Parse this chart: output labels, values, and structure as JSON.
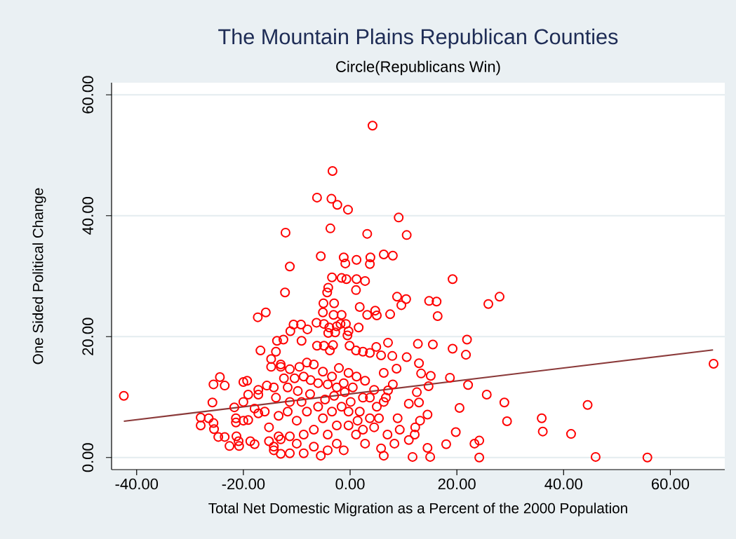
{
  "chart_data": {
    "type": "scatter",
    "title": "The Mountain Plains Republican Counties",
    "subtitle": "Circle(Republicans Win)",
    "xlabel": "Total Net Domestic Migration as a Percent of the 2000 Population",
    "ylabel": "One Sided Political Change",
    "xlim": [
      -44.7,
      70.2
    ],
    "ylim": [
      -2,
      62
    ],
    "xticks": [
      {
        "value": -40,
        "label": "-40.00"
      },
      {
        "value": -20,
        "label": "-20.00"
      },
      {
        "value": 0,
        "label": "0.00"
      },
      {
        "value": 20,
        "label": "20.00"
      },
      {
        "value": 40,
        "label": "40.00"
      },
      {
        "value": 60,
        "label": "60.00"
      }
    ],
    "yticks": [
      {
        "value": 0,
        "label": "0.00"
      },
      {
        "value": 20,
        "label": "20.00"
      },
      {
        "value": 40,
        "label": "40.00"
      },
      {
        "value": 60,
        "label": "60.00"
      }
    ],
    "grid": "y",
    "series": [
      {
        "type": "scatter",
        "marker": "circle",
        "color": "#ff0000",
        "x": [
          -42.4,
          4.2,
          -3.3,
          -6.2,
          -3.5,
          -2.4,
          -0.4,
          -3.7,
          -12.1,
          3.2,
          9.1,
          10.6,
          -5.5,
          6.3,
          8.0,
          -1.2,
          3.8,
          -0.9,
          -11.3,
          1.2,
          3.7,
          -3.4,
          -1.6,
          -0.7,
          1.2,
          2.8,
          1.1,
          -4.1,
          -4.3,
          -12.2,
          19.2,
          28.0,
          25.9,
          16.2,
          14.8,
          8.8,
          10.5,
          9.6,
          16.4,
          -5.0,
          -3.0,
          1.8,
          4.7,
          5.0,
          7.5,
          3.2,
          -15.8,
          -17.3,
          -5.1,
          -3.1,
          -1.6,
          -6.3,
          -10.6,
          -9.2,
          -8.0,
          -11.2,
          -4.9,
          -3.9,
          -2.5,
          -1.8,
          -0.8,
          -0.3,
          1.6,
          -4.1,
          -2.8,
          -0.5,
          -9.1,
          -13.7,
          -12.5,
          7.1,
          4.9,
          -6.2,
          -4.9,
          -3.8,
          -3.2,
          -0.1,
          1.1,
          2.4,
          3.7,
          5.8,
          7.9,
          10.6,
          21.9,
          19.2,
          15.5,
          12.7,
          21.7,
          -16.8,
          -14.8,
          -13.9,
          12.9,
          13.3,
          15.1,
          18.7,
          14.7,
          22.1,
          12.5,
          25.6,
          12.9,
          11.0,
          28.9,
          20.5,
          14.5,
          13.1,
          29.4,
          35.9,
          44.5,
          36.1,
          41.4,
          12.2,
          12.1,
          19.8,
          11.0,
          18.0,
          14.5,
          23.3,
          24.2,
          11.7,
          15.0,
          24.2,
          46.0,
          55.7,
          68.1,
          -14.8,
          -13.0,
          -24.4,
          -25.6,
          -23.5,
          -20.0,
          -19.3,
          -17.2,
          -15.6,
          -25.8,
          -21.7,
          -20.0,
          -19.1,
          -17.2,
          -17.9,
          -28.0,
          -28.0,
          -26.5,
          -25.6,
          -25.5,
          -24.7,
          -23.5,
          -22.6,
          -21.3,
          -20.9,
          -20.8,
          -21.4,
          -21.4,
          -18.7,
          -17.9,
          -20.0,
          -19.1,
          -17.2,
          -16.0,
          -15.2,
          -15.2,
          -13.0,
          -14.3,
          -13.0,
          8.7,
          6.3,
          8.0,
          4.5,
          2.8,
          1.2,
          -0.3,
          -2.1,
          -3.4,
          -5.1,
          -6.8,
          -8.1,
          -9.5,
          -11.3,
          -13.0,
          -14.3,
          -12.4,
          -11.7,
          -10.4,
          -8.7,
          -7.4,
          -6.0,
          -4.2,
          -2.5,
          -1.2,
          0.5,
          2.4,
          3.7,
          5.0,
          6.3,
          7.1,
          6.7,
          5.4,
          4.5,
          7.0,
          5.8,
          6.3,
          8.3,
          8.9,
          9.3,
          2.8,
          1.1,
          -0.3,
          -1.2,
          -2.5,
          -4.2,
          -5.5,
          -6.8,
          -8.7,
          -10.0,
          -11.3,
          -14.3,
          -13.4,
          -11.7,
          -10.0,
          -8.1,
          -6.8,
          -5.1,
          -3.4,
          -1.6,
          -2.5,
          -4.2,
          -8.7,
          -11.3,
          -13.4,
          -6.0,
          -9.1,
          -11.3,
          -13.9,
          -4.7,
          0.1,
          1.8,
          3.7,
          2.4,
          -0.3,
          1.4,
          -7.5,
          -9.8,
          -3.0,
          -1.0
        ],
        "values": [
          10.2,
          54.9,
          47.4,
          43.0,
          42.8,
          41.8,
          41.0,
          37.9,
          37.2,
          37.0,
          39.7,
          36.8,
          33.3,
          33.6,
          33.4,
          33.1,
          33.1,
          32.1,
          31.6,
          32.7,
          32.0,
          29.8,
          29.7,
          29.5,
          29.5,
          29.2,
          27.7,
          28.1,
          27.3,
          27.3,
          29.5,
          26.6,
          25.4,
          25.8,
          25.9,
          26.6,
          26.2,
          25.2,
          23.4,
          25.5,
          25.5,
          24.9,
          24.3,
          23.5,
          23.7,
          23.6,
          24.0,
          23.2,
          24.0,
          23.6,
          23.6,
          22.3,
          22.0,
          22.0,
          21.2,
          20.9,
          22.1,
          21.5,
          21.7,
          22.1,
          22.1,
          20.9,
          21.5,
          20.6,
          20.7,
          20.2,
          19.3,
          19.3,
          19.5,
          19.0,
          18.3,
          18.5,
          18.5,
          17.7,
          18.6,
          18.5,
          17.7,
          17.5,
          17.3,
          16.9,
          16.8,
          16.6,
          19.5,
          18.0,
          18.7,
          18.8,
          17.0,
          17.7,
          16.3,
          17.5,
          15.6,
          13.9,
          13.5,
          13.2,
          11.8,
          12.0,
          10.8,
          10.4,
          9.1,
          8.9,
          9.1,
          8.2,
          7.1,
          6.1,
          6.0,
          6.5,
          8.7,
          4.3,
          3.9,
          5.0,
          3.8,
          4.2,
          2.9,
          2.2,
          1.6,
          2.3,
          2.8,
          0.1,
          0.1,
          0.0,
          0.1,
          0.0,
          15.5,
          15.0,
          15.0,
          13.3,
          12.1,
          11.9,
          12.5,
          12.7,
          11.2,
          11.9,
          9.1,
          8.3,
          9.2,
          10.4,
          10.4,
          8.1,
          6.6,
          5.3,
          6.5,
          5.7,
          4.7,
          3.4,
          3.4,
          1.9,
          3.5,
          2.7,
          1.9,
          6.5,
          5.8,
          2.7,
          2.2,
          6.1,
          6.2,
          7.3,
          7.6,
          5.0,
          2.7,
          0.6,
          1.2,
          3.0,
          14.7,
          14.0,
          12.1,
          11.2,
          12.7,
          13.4,
          14.0,
          14.8,
          13.4,
          14.2,
          15.4,
          15.7,
          15.0,
          14.6,
          15.4,
          11.6,
          13.1,
          11.6,
          13.1,
          13.4,
          12.8,
          12.3,
          12.1,
          11.6,
          12.3,
          11.6,
          9.9,
          9.9,
          8.4,
          9.2,
          11.1,
          9.9,
          6.5,
          5.0,
          3.8,
          1.5,
          0.3,
          2.3,
          6.5,
          4.6,
          2.3,
          3.8,
          5.3,
          1.2,
          2.3,
          1.2,
          0.3,
          1.8,
          0.7,
          2.3,
          0.7,
          1.8,
          6.9,
          7.6,
          6.1,
          7.6,
          4.6,
          6.5,
          7.6,
          8.4,
          5.3,
          3.8,
          3.8,
          3.5,
          3.5,
          8.4,
          9.2,
          9.2,
          9.9,
          9.6,
          9.2,
          7.6,
          6.5,
          4.6,
          7.6,
          6.1,
          10.5,
          11.0,
          10.2,
          10.8
        ]
      },
      {
        "type": "line",
        "color": "#8b3a3a",
        "x": [
          -42.4,
          68.0
        ],
        "values": [
          6.0,
          17.8
        ]
      }
    ]
  }
}
